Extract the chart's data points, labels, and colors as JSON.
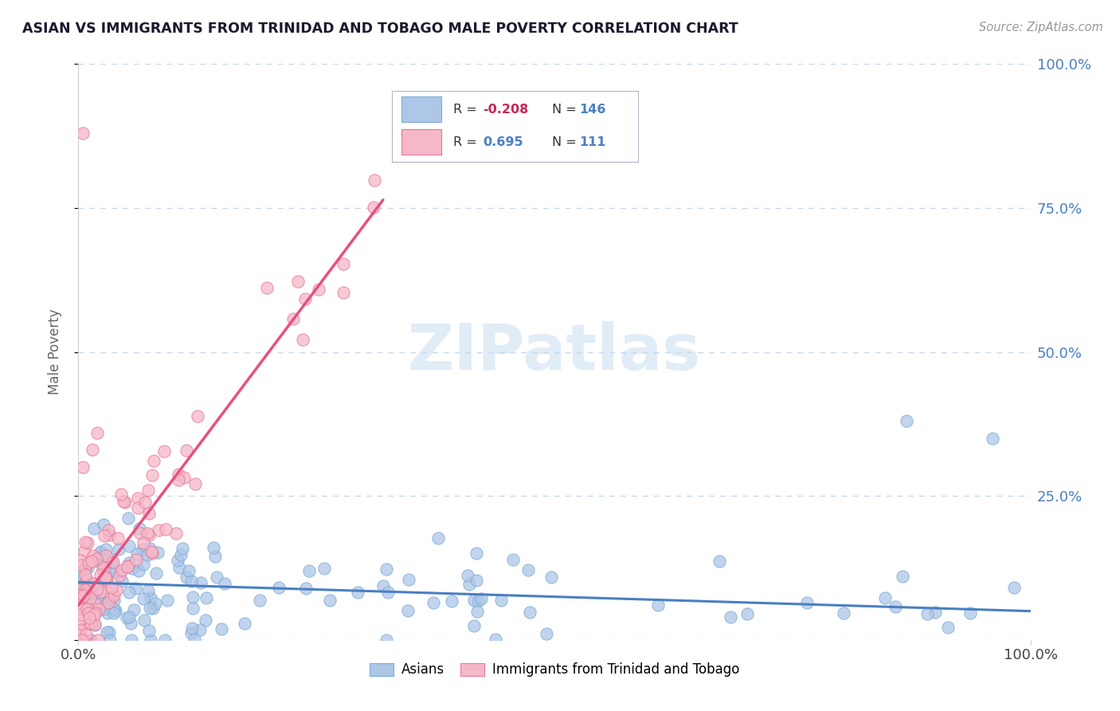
{
  "title": "ASIAN VS IMMIGRANTS FROM TRINIDAD AND TOBAGO MALE POVERTY CORRELATION CHART",
  "source": "Source: ZipAtlas.com",
  "ylabel": "Male Poverty",
  "xlim": [
    0.0,
    1.0
  ],
  "ylim": [
    0.0,
    1.0
  ],
  "asian_color": "#aec6e8",
  "asian_edge_color": "#7aadd4",
  "asian_line_color": "#4a7fc1",
  "tt_color": "#f5b8c8",
  "tt_edge_color": "#e87898",
  "tt_line_color": "#e85080",
  "background_color": "#ffffff",
  "grid_color": "#c8d8ea",
  "R_asian": -0.208,
  "N_asian": 146,
  "R_tt": 0.695,
  "N_tt": 111,
  "legend_R_color": "#cc2255",
  "legend_N_color": "#4a7fc1",
  "watermark_color": "#c8ddf0",
  "right_label_color": "#4a7fc1"
}
